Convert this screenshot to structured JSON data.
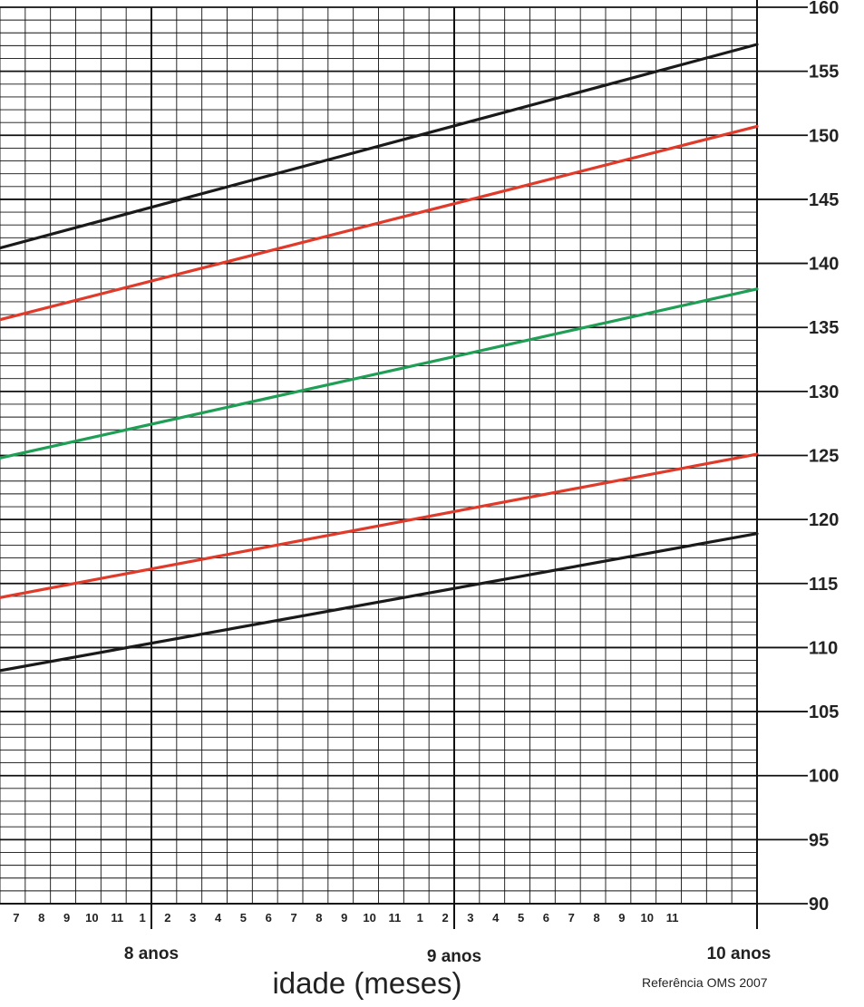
{
  "chart_data": {
    "type": "line",
    "xlabel": "idade (meses)",
    "source": "Referência OMS 2007",
    "y_axis_label": "",
    "ylim": [
      90,
      160
    ],
    "y_ticks": [
      90,
      95,
      100,
      105,
      110,
      115,
      120,
      125,
      130,
      135,
      140,
      145,
      150,
      155,
      160
    ],
    "x_range_months": [
      90,
      120
    ],
    "x_month_ticks": [
      "7",
      "8",
      "9",
      "10",
      "11",
      "1",
      "2",
      "3",
      "4",
      "5",
      "6",
      "7",
      "8",
      "9",
      "10",
      "11",
      "1",
      "2",
      "3",
      "4",
      "5",
      "6",
      "7",
      "8",
      "9",
      "10",
      "11"
    ],
    "x_year_labels": [
      {
        "label": "8 anos",
        "month": 96
      },
      {
        "label": "9 anos",
        "month": 108
      },
      {
        "label": "10 anos",
        "month": 120
      }
    ],
    "grid": true,
    "series": [
      {
        "color": "#1a1a1a",
        "points": [
          [
            90,
            141.2
          ],
          [
            120,
            157.1
          ]
        ]
      },
      {
        "color": "#e03a2a",
        "points": [
          [
            90,
            135.6
          ],
          [
            120,
            150.7
          ]
        ]
      },
      {
        "color": "#1f9e55",
        "points": [
          [
            90,
            124.8
          ],
          [
            120,
            138.0
          ]
        ]
      },
      {
        "color": "#e03a2a",
        "points": [
          [
            90,
            113.9
          ],
          [
            120,
            125.1
          ]
        ]
      },
      {
        "color": "#1a1a1a",
        "points": [
          [
            90,
            108.2
          ],
          [
            120,
            118.9
          ]
        ]
      }
    ]
  }
}
